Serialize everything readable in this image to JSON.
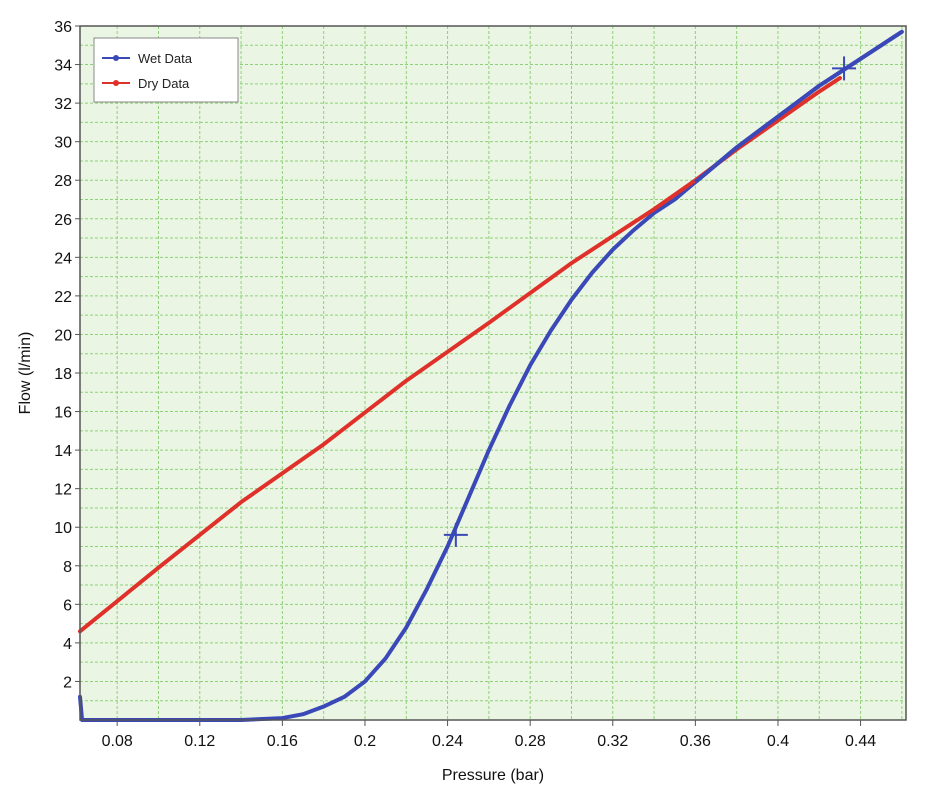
{
  "chart_data": {
    "type": "line",
    "title": "",
    "xlabel": "Pressure (bar)",
    "ylabel": "Flow (l/min)",
    "xlim": [
      0.062,
      0.462
    ],
    "ylim": [
      0,
      36
    ],
    "x_ticks": [
      0.08,
      0.12,
      0.16,
      0.2,
      0.24,
      0.28,
      0.32,
      0.36,
      0.4,
      0.44
    ],
    "x_tick_labels": [
      "0.08",
      "0.12",
      "0.16",
      "0.2",
      "0.24",
      "0.28",
      "0.32",
      "0.36",
      "0.4",
      "0.44"
    ],
    "y_ticks": [
      2,
      4,
      6,
      8,
      10,
      12,
      14,
      16,
      18,
      20,
      22,
      24,
      26,
      28,
      30,
      32,
      34,
      36
    ],
    "y_tick_labels": [
      "2",
      "4",
      "6",
      "8",
      "10",
      "12",
      "14",
      "16",
      "18",
      "20",
      "22",
      "24",
      "26",
      "28",
      "30",
      "32",
      "34",
      "36"
    ],
    "grid": true,
    "legend_position": "top-left",
    "plot_background": "#eaf6e3",
    "grid_color": "#8fcf7a",
    "series": [
      {
        "name": "Wet Data",
        "color": "#3a48b8",
        "x": [
          0.062,
          0.063,
          0.064,
          0.1,
          0.14,
          0.16,
          0.17,
          0.18,
          0.19,
          0.2,
          0.21,
          0.22,
          0.23,
          0.24,
          0.25,
          0.26,
          0.27,
          0.28,
          0.29,
          0.3,
          0.31,
          0.32,
          0.33,
          0.34,
          0.35,
          0.36,
          0.37,
          0.38,
          0.39,
          0.4,
          0.41,
          0.42,
          0.43,
          0.44,
          0.45,
          0.46
        ],
        "y": [
          1.2,
          0,
          0,
          0,
          0,
          0.1,
          0.3,
          0.7,
          1.2,
          2.0,
          3.2,
          4.8,
          6.8,
          9.0,
          11.5,
          14.0,
          16.3,
          18.4,
          20.2,
          21.8,
          23.2,
          24.4,
          25.4,
          26.3,
          27.0,
          27.9,
          28.8,
          29.7,
          30.5,
          31.3,
          32.1,
          32.9,
          33.6,
          34.3,
          35.0,
          35.7
        ]
      },
      {
        "name": "Dry Data",
        "color": "#e0302a",
        "x": [
          0.062,
          0.1,
          0.14,
          0.18,
          0.22,
          0.26,
          0.3,
          0.34,
          0.36,
          0.38,
          0.4,
          0.42,
          0.43
        ],
        "y": [
          4.6,
          7.9,
          11.3,
          14.3,
          17.6,
          20.6,
          23.7,
          26.5,
          28.0,
          29.6,
          31.1,
          32.6,
          33.3
        ]
      }
    ],
    "markers": [
      {
        "x": 0.244,
        "y": 9.6
      },
      {
        "x": 0.432,
        "y": 33.8
      }
    ]
  }
}
